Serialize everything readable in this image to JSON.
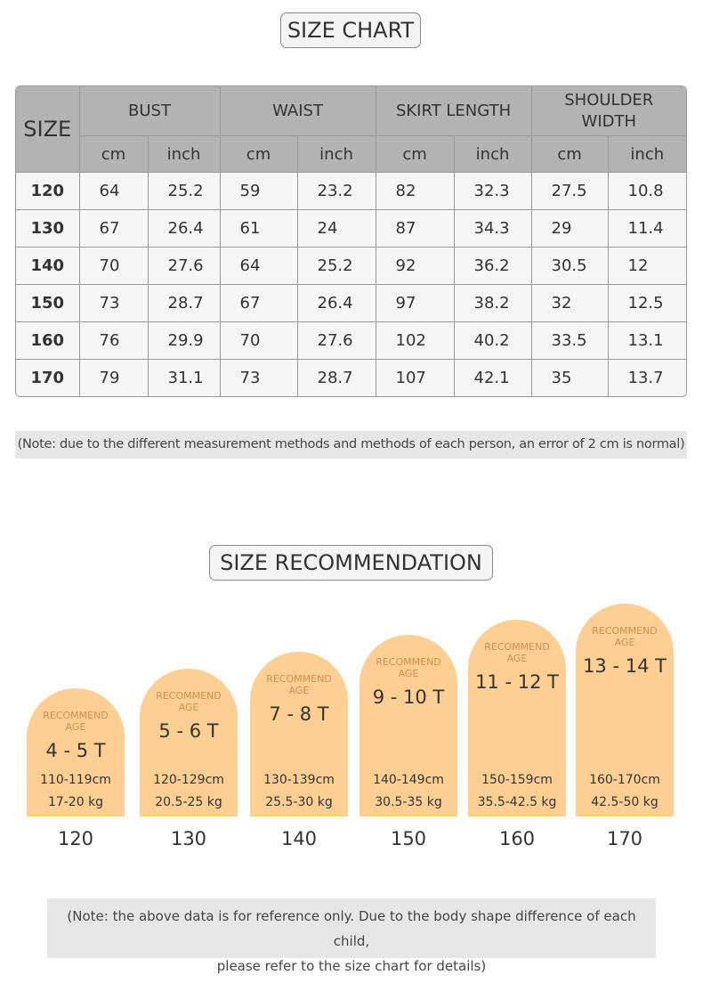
{
  "header": {
    "title": "SIZE CHART"
  },
  "table": {
    "size_label": "SIZE",
    "groups": [
      {
        "name": "BUST",
        "units": [
          "cm",
          "inch"
        ]
      },
      {
        "name": "WAIST",
        "units": [
          "cm",
          "inch"
        ]
      },
      {
        "name": "SKIRT LENGTH",
        "units": [
          "cm",
          "inch"
        ]
      },
      {
        "name": "SHOULDER WIDTH",
        "units": [
          "cm",
          "inch"
        ]
      }
    ],
    "rows": [
      [
        "120",
        "64",
        "25.2",
        "59",
        "23.2",
        "82",
        "32.3",
        "27.5",
        "10.8"
      ],
      [
        "130",
        "67",
        "26.4",
        "61",
        "24",
        "87",
        "34.3",
        "29",
        "11.4"
      ],
      [
        "140",
        "70",
        "27.6",
        "64",
        "25.2",
        "92",
        "36.2",
        "30.5",
        "12"
      ],
      [
        "150",
        "73",
        "28.7",
        "67",
        "26.4",
        "97",
        "38.2",
        "32",
        "12.5"
      ],
      [
        "160",
        "76",
        "29.9",
        "70",
        "27.6",
        "102",
        "40.2",
        "33.5",
        "13.1"
      ],
      [
        "170",
        "79",
        "31.1",
        "73",
        "28.7",
        "107",
        "42.1",
        "35",
        "13.7"
      ]
    ]
  },
  "note": "(Note: due to the different measurement methods and methods of each person, an error of 2 cm is normal)",
  "recommendation": {
    "title": "SIZE RECOMMENDATION",
    "cards": [
      {
        "label": "RECOMMEND AGE",
        "age": "4 - 5 T",
        "height": "110-119cm",
        "weight": "17-20 kg",
        "size": "120"
      },
      {
        "label": "RECOMMEND AGE",
        "age": "5 - 6 T",
        "height": "120-129cm",
        "weight": "20.5-25 kg",
        "size": "130"
      },
      {
        "label": "RECOMMEND AGE",
        "age": "7 - 8 T",
        "height": "130-139cm",
        "weight": "25.5-30 kg",
        "size": "140"
      },
      {
        "label": "RECOMMEND AGE",
        "age": "9 - 10 T",
        "height": "140-149cm",
        "weight": "30.5-35 kg",
        "size": "150"
      },
      {
        "label": "RECOMMEND AGE",
        "age": "11 - 12 T",
        "height": "150-159cm",
        "weight": "35.5-42.5 kg",
        "size": "160"
      },
      {
        "label": "RECOMMEND AGE",
        "age": "13 - 14 T",
        "height": "160-170cm",
        "weight": "42.5-50 kg",
        "size": "170"
      }
    ],
    "note": [
      "(Note: the above data is for reference only. Due to the body shape difference of each child,",
      "please refer to the size chart for details)"
    ]
  }
}
